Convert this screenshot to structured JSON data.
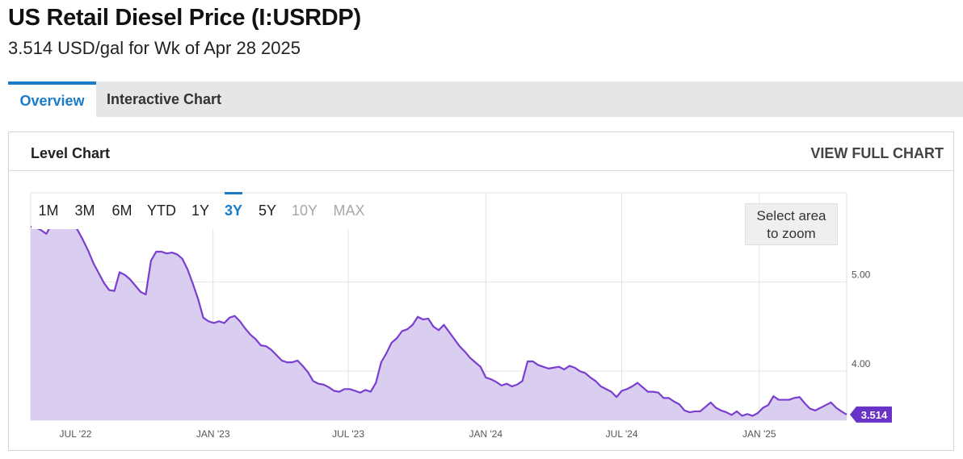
{
  "header": {
    "title": "US Retail Diesel Price (I:USRDP)",
    "subtitle": "3.514 USD/gal for Wk of Apr 28 2025"
  },
  "tabs": [
    {
      "label": "Overview",
      "active": true
    },
    {
      "label": "Interactive Chart",
      "active": false
    }
  ],
  "card": {
    "title": "Level Chart",
    "view_full_label": "VIEW FULL CHART"
  },
  "range_buttons": [
    {
      "label": "1M",
      "state": "enabled"
    },
    {
      "label": "3M",
      "state": "enabled"
    },
    {
      "label": "6M",
      "state": "enabled"
    },
    {
      "label": "YTD",
      "state": "enabled"
    },
    {
      "label": "1Y",
      "state": "enabled"
    },
    {
      "label": "3Y",
      "state": "selected"
    },
    {
      "label": "5Y",
      "state": "enabled"
    },
    {
      "label": "10Y",
      "state": "disabled"
    },
    {
      "label": "MAX",
      "state": "disabled"
    }
  ],
  "zoom_hint": {
    "line1": "Select area",
    "line2": "to zoom"
  },
  "colors": {
    "accent": "#1a7cc9",
    "series_line": "#7a3fcf",
    "series_fill": "#d9cdf0",
    "last_badge": "#6a33c7",
    "disabled_text": "#a8a8a8"
  },
  "chart_data": {
    "type": "area",
    "title": "",
    "xlabel": "",
    "ylabel": "",
    "x_range": [
      "2022-05-02",
      "2025-04-28"
    ],
    "ylim": [
      3.45,
      6.0
    ],
    "y_ticks": [
      {
        "value": 4.0,
        "label": "4.00"
      },
      {
        "value": 5.0,
        "label": "5.00"
      }
    ],
    "x_ticks": [
      {
        "date": "2022-07-01",
        "label": "JUL '22"
      },
      {
        "date": "2023-01-01",
        "label": "JAN '23"
      },
      {
        "date": "2023-07-01",
        "label": "JUL '23"
      },
      {
        "date": "2024-01-01",
        "label": "JAN '24"
      },
      {
        "date": "2024-07-01",
        "label": "JUL '24"
      },
      {
        "date": "2025-01-01",
        "label": "JAN '25"
      }
    ],
    "grid": true,
    "last_value_label": "3.514",
    "series": [
      {
        "values": [
          [
            "2022-05-02",
            5.62
          ],
          [
            "2022-05-09",
            5.61
          ],
          [
            "2022-05-16",
            5.58
          ],
          [
            "2022-05-23",
            5.54
          ],
          [
            "2022-05-30",
            5.65
          ],
          [
            "2022-06-06",
            5.66
          ],
          [
            "2022-06-13",
            5.76
          ],
          [
            "2022-06-20",
            5.74
          ],
          [
            "2022-06-27",
            5.66
          ],
          [
            "2022-07-04",
            5.58
          ],
          [
            "2022-07-11",
            5.47
          ],
          [
            "2022-07-18",
            5.35
          ],
          [
            "2022-07-25",
            5.21
          ],
          [
            "2022-08-01",
            5.1
          ],
          [
            "2022-08-08",
            4.99
          ],
          [
            "2022-08-15",
            4.91
          ],
          [
            "2022-08-22",
            4.9
          ],
          [
            "2022-08-29",
            5.11
          ],
          [
            "2022-09-05",
            5.08
          ],
          [
            "2022-09-12",
            5.03
          ],
          [
            "2022-09-19",
            4.96
          ],
          [
            "2022-09-26",
            4.89
          ],
          [
            "2022-10-03",
            4.86
          ],
          [
            "2022-10-10",
            5.24
          ],
          [
            "2022-10-17",
            5.34
          ],
          [
            "2022-10-24",
            5.34
          ],
          [
            "2022-10-31",
            5.32
          ],
          [
            "2022-11-07",
            5.33
          ],
          [
            "2022-11-14",
            5.31
          ],
          [
            "2022-11-21",
            5.26
          ],
          [
            "2022-11-28",
            5.14
          ],
          [
            "2022-12-05",
            4.98
          ],
          [
            "2022-12-12",
            4.81
          ],
          [
            "2022-12-19",
            4.6
          ],
          [
            "2022-12-26",
            4.56
          ],
          [
            "2023-01-02",
            4.54
          ],
          [
            "2023-01-09",
            4.56
          ],
          [
            "2023-01-16",
            4.54
          ],
          [
            "2023-01-23",
            4.6
          ],
          [
            "2023-01-30",
            4.62
          ],
          [
            "2023-02-06",
            4.56
          ],
          [
            "2023-02-13",
            4.48
          ],
          [
            "2023-02-20",
            4.41
          ],
          [
            "2023-02-27",
            4.36
          ],
          [
            "2023-03-06",
            4.29
          ],
          [
            "2023-03-13",
            4.28
          ],
          [
            "2023-03-20",
            4.24
          ],
          [
            "2023-03-27",
            4.18
          ],
          [
            "2023-04-03",
            4.12
          ],
          [
            "2023-04-10",
            4.1
          ],
          [
            "2023-04-17",
            4.1
          ],
          [
            "2023-04-24",
            4.12
          ],
          [
            "2023-05-01",
            4.06
          ],
          [
            "2023-05-08",
            3.99
          ],
          [
            "2023-05-15",
            3.89
          ],
          [
            "2023-05-22",
            3.86
          ],
          [
            "2023-05-29",
            3.85
          ],
          [
            "2023-06-05",
            3.82
          ],
          [
            "2023-06-12",
            3.78
          ],
          [
            "2023-06-19",
            3.77
          ],
          [
            "2023-06-26",
            3.8
          ],
          [
            "2023-07-03",
            3.8
          ],
          [
            "2023-07-10",
            3.78
          ],
          [
            "2023-07-17",
            3.76
          ],
          [
            "2023-07-24",
            3.79
          ],
          [
            "2023-07-31",
            3.77
          ],
          [
            "2023-08-07",
            3.87
          ],
          [
            "2023-08-14",
            4.1
          ],
          [
            "2023-08-21",
            4.2
          ],
          [
            "2023-08-28",
            4.32
          ],
          [
            "2023-09-04",
            4.37
          ],
          [
            "2023-09-11",
            4.45
          ],
          [
            "2023-09-18",
            4.47
          ],
          [
            "2023-09-25",
            4.52
          ],
          [
            "2023-10-02",
            4.61
          ],
          [
            "2023-10-09",
            4.58
          ],
          [
            "2023-10-16",
            4.59
          ],
          [
            "2023-10-23",
            4.5
          ],
          [
            "2023-10-30",
            4.46
          ],
          [
            "2023-11-06",
            4.52
          ],
          [
            "2023-11-13",
            4.44
          ],
          [
            "2023-11-20",
            4.36
          ],
          [
            "2023-11-27",
            4.28
          ],
          [
            "2023-12-04",
            4.22
          ],
          [
            "2023-12-11",
            4.15
          ],
          [
            "2023-12-18",
            4.1
          ],
          [
            "2023-12-25",
            4.05
          ],
          [
            "2024-01-01",
            3.93
          ],
          [
            "2024-01-08",
            3.91
          ],
          [
            "2024-01-15",
            3.88
          ],
          [
            "2024-01-22",
            3.84
          ],
          [
            "2024-01-29",
            3.86
          ],
          [
            "2024-02-05",
            3.83
          ],
          [
            "2024-02-12",
            3.85
          ],
          [
            "2024-02-19",
            3.89
          ],
          [
            "2024-02-26",
            4.11
          ],
          [
            "2024-03-04",
            4.11
          ],
          [
            "2024-03-11",
            4.07
          ],
          [
            "2024-03-18",
            4.05
          ],
          [
            "2024-03-25",
            4.03
          ],
          [
            "2024-04-01",
            4.04
          ],
          [
            "2024-04-08",
            4.05
          ],
          [
            "2024-04-15",
            4.02
          ],
          [
            "2024-04-22",
            4.06
          ],
          [
            "2024-04-29",
            4.04
          ],
          [
            "2024-05-06",
            4.0
          ],
          [
            "2024-05-13",
            3.98
          ],
          [
            "2024-05-20",
            3.93
          ],
          [
            "2024-05-27",
            3.89
          ],
          [
            "2024-06-03",
            3.83
          ],
          [
            "2024-06-10",
            3.8
          ],
          [
            "2024-06-17",
            3.77
          ],
          [
            "2024-06-24",
            3.71
          ],
          [
            "2024-07-01",
            3.78
          ],
          [
            "2024-07-08",
            3.8
          ],
          [
            "2024-07-15",
            3.83
          ],
          [
            "2024-07-22",
            3.87
          ],
          [
            "2024-07-29",
            3.82
          ],
          [
            "2024-08-05",
            3.77
          ],
          [
            "2024-08-12",
            3.77
          ],
          [
            "2024-08-19",
            3.76
          ],
          [
            "2024-08-26",
            3.7
          ],
          [
            "2024-09-02",
            3.7
          ],
          [
            "2024-09-09",
            3.66
          ],
          [
            "2024-09-16",
            3.63
          ],
          [
            "2024-09-23",
            3.56
          ],
          [
            "2024-09-30",
            3.54
          ],
          [
            "2024-10-07",
            3.55
          ],
          [
            "2024-10-14",
            3.55
          ],
          [
            "2024-10-21",
            3.6
          ],
          [
            "2024-10-28",
            3.65
          ],
          [
            "2024-11-04",
            3.59
          ],
          [
            "2024-11-11",
            3.56
          ],
          [
            "2024-11-18",
            3.54
          ],
          [
            "2024-11-25",
            3.51
          ],
          [
            "2024-12-02",
            3.55
          ],
          [
            "2024-12-09",
            3.5
          ],
          [
            "2024-12-16",
            3.52
          ],
          [
            "2024-12-23",
            3.5
          ],
          [
            "2024-12-30",
            3.53
          ],
          [
            "2025-01-06",
            3.59
          ],
          [
            "2025-01-13",
            3.62
          ],
          [
            "2025-01-20",
            3.72
          ],
          [
            "2025-01-27",
            3.68
          ],
          [
            "2025-02-03",
            3.68
          ],
          [
            "2025-02-10",
            3.68
          ],
          [
            "2025-02-17",
            3.7
          ],
          [
            "2025-02-24",
            3.71
          ],
          [
            "2025-03-03",
            3.64
          ],
          [
            "2025-03-10",
            3.58
          ],
          [
            "2025-03-17",
            3.56
          ],
          [
            "2025-03-24",
            3.59
          ],
          [
            "2025-03-31",
            3.62
          ],
          [
            "2025-04-07",
            3.65
          ],
          [
            "2025-04-14",
            3.59
          ],
          [
            "2025-04-21",
            3.55
          ],
          [
            "2025-04-28",
            3.514
          ]
        ]
      }
    ]
  }
}
